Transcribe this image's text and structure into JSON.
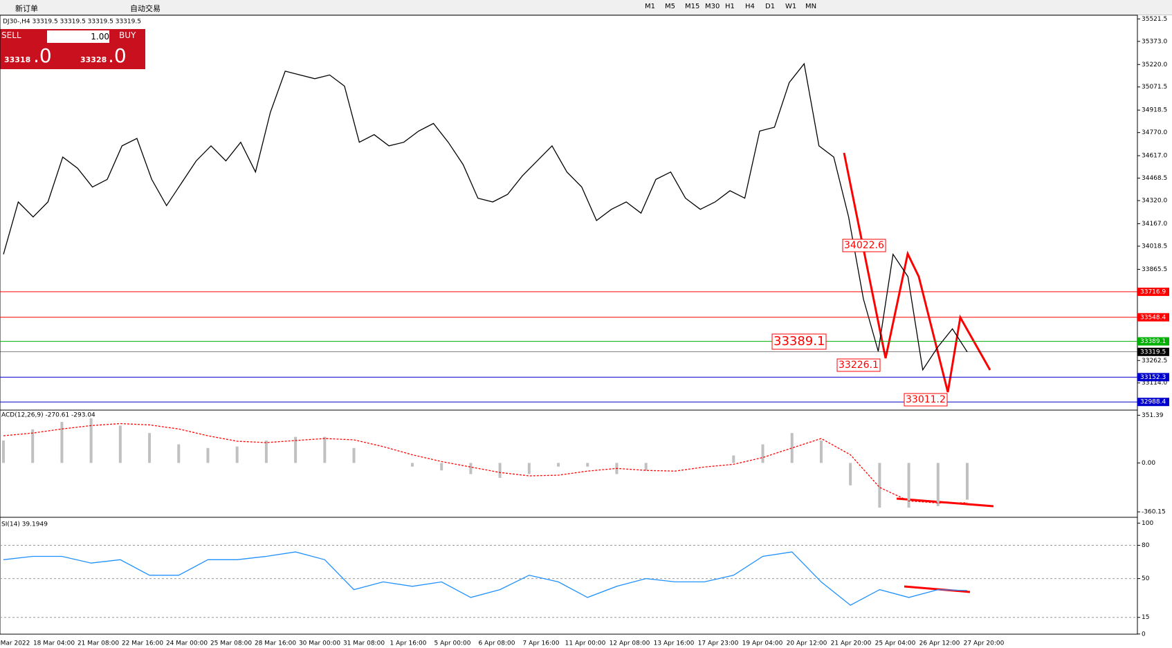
{
  "toolbar": {
    "new_order": "新订单",
    "auto_trade": "自动交易",
    "timeframes": [
      "M1",
      "M5",
      "M15",
      "M30",
      "H1",
      "H4",
      "D1",
      "W1",
      "MN"
    ]
  },
  "trade_panel": {
    "sell": "SELL",
    "buy": "BUY",
    "lots": "1.00",
    "bid_main": "33318",
    "bid_frac": ".0",
    "ask_main": "33328",
    "ask_frac": ".0"
  },
  "chart": {
    "header": "DJ30-,H4  33319.5 33319.5 33319.5 33319.5",
    "price": {
      "ylim": [
        32939,
        35546
      ],
      "yticks": [
        {
          "value": 35521.5,
          "label": "35521.5"
        },
        {
          "value": 35373,
          "label": "35373.0"
        },
        {
          "value": 35220,
          "label": "35220.0"
        },
        {
          "value": 35071.5,
          "label": "35071.5"
        },
        {
          "value": 34918.5,
          "label": "34918.5"
        },
        {
          "value": 34770,
          "label": "34770.0"
        },
        {
          "value": 34617,
          "label": "34617.0"
        },
        {
          "value": 34468.5,
          "label": "34468.5"
        },
        {
          "value": 34320,
          "label": "34320.0"
        },
        {
          "value": 34167,
          "label": "34167.0"
        },
        {
          "value": 34018.5,
          "label": "34018.5"
        },
        {
          "value": 33865.5,
          "label": "33865.5"
        },
        {
          "value": 33262.5,
          "label": "33262.5"
        },
        {
          "value": 33114,
          "label": "33114.0"
        }
      ],
      "closes": [
        33965,
        34311,
        34212,
        34311,
        34608,
        34534,
        34410,
        34460,
        34682,
        34731,
        34460,
        34287,
        34435,
        34583,
        34682,
        34583,
        34706,
        34509,
        34904,
        35176,
        35151,
        35126,
        35151,
        35077,
        34706,
        34756,
        34682,
        34706,
        34780,
        34830,
        34706,
        34558,
        34336,
        34311,
        34361,
        34484,
        34583,
        34682,
        34509,
        34410,
        34188,
        34262,
        34311,
        34237,
        34460,
        34509,
        34336,
        34262,
        34311,
        34385,
        34336,
        34780,
        34805,
        35101,
        35225,
        34682,
        34608,
        34212,
        33669,
        33323,
        33965,
        33817,
        33200,
        33349,
        33472,
        33319.5
      ],
      "levels": [
        {
          "value": 33716.9,
          "color": "#ff0000"
        },
        {
          "value": 33548.4,
          "color": "#ff0000"
        },
        {
          "value": 33389.1,
          "color": "#00b000"
        },
        {
          "value": 33319.5,
          "color": "#000000"
        },
        {
          "value": 33152.3,
          "color": "#0000cc"
        },
        {
          "value": 32988.4,
          "color": "#0000cc"
        }
      ],
      "annotations": [
        "34022.6",
        "33389.1",
        "33226.1",
        "33011.2"
      ]
    },
    "macd": {
      "label": "ACD(12,26,9) -270.61 -293.04",
      "ylim": [
        -390,
        384
      ],
      "yticks": [
        {
          "value": 351.39,
          "label": "351.39"
        },
        {
          "value": 0,
          "label": "0.00"
        },
        {
          "value": -360.15,
          "label": "-360.15"
        }
      ],
      "histogram": [
        165,
        247,
        302,
        329,
        275,
        220,
        137,
        110,
        121,
        165,
        192,
        192,
        110,
        0,
        -27,
        -55,
        -82,
        -110,
        -82,
        -27,
        -27,
        -82,
        -55,
        0,
        0,
        55,
        137,
        220,
        165,
        -165,
        -329,
        -329,
        -318,
        -270.61
      ],
      "signal": [
        200,
        220,
        250,
        275,
        290,
        280,
        250,
        200,
        160,
        150,
        165,
        180,
        170,
        120,
        60,
        10,
        -30,
        -70,
        -95,
        -90,
        -60,
        -40,
        -55,
        -60,
        -30,
        -10,
        40,
        110,
        180,
        60,
        -180,
        -280,
        -295,
        -293.04
      ]
    },
    "rsi": {
      "label": "SI(14) 39.1949",
      "ylim": [
        -2,
        104
      ],
      "yticks": [
        100,
        80,
        50,
        15,
        0
      ],
      "values": [
        67,
        70,
        70,
        64,
        67,
        53,
        53,
        67,
        67,
        70,
        74,
        67,
        40,
        47,
        43,
        47,
        33,
        40,
        53,
        47,
        33,
        43,
        50,
        47,
        47,
        53,
        70,
        74,
        47,
        26,
        40,
        33,
        40,
        39.1949
      ]
    },
    "time_labels": [
      "Mar 2022",
      "18 Mar 04:00",
      "21 Mar 08:00",
      "22 Mar 16:00",
      "24 Mar 00:00",
      "25 Mar 08:00",
      "28 Mar 16:00",
      "30 Mar 00:00",
      "31 Mar 08:00",
      "1 Apr 16:00",
      "5 Apr 00:00",
      "6 Apr 08:00",
      "7 Apr 16:00",
      "11 Apr 00:00",
      "12 Apr 08:00",
      "13 Apr 16:00",
      "17 Apr 23:00",
      "19 Apr 04:00",
      "20 Apr 12:00",
      "21 Apr 20:00",
      "25 Apr 04:00",
      "26 Apr 12:00",
      "27 Apr 20:00"
    ]
  }
}
